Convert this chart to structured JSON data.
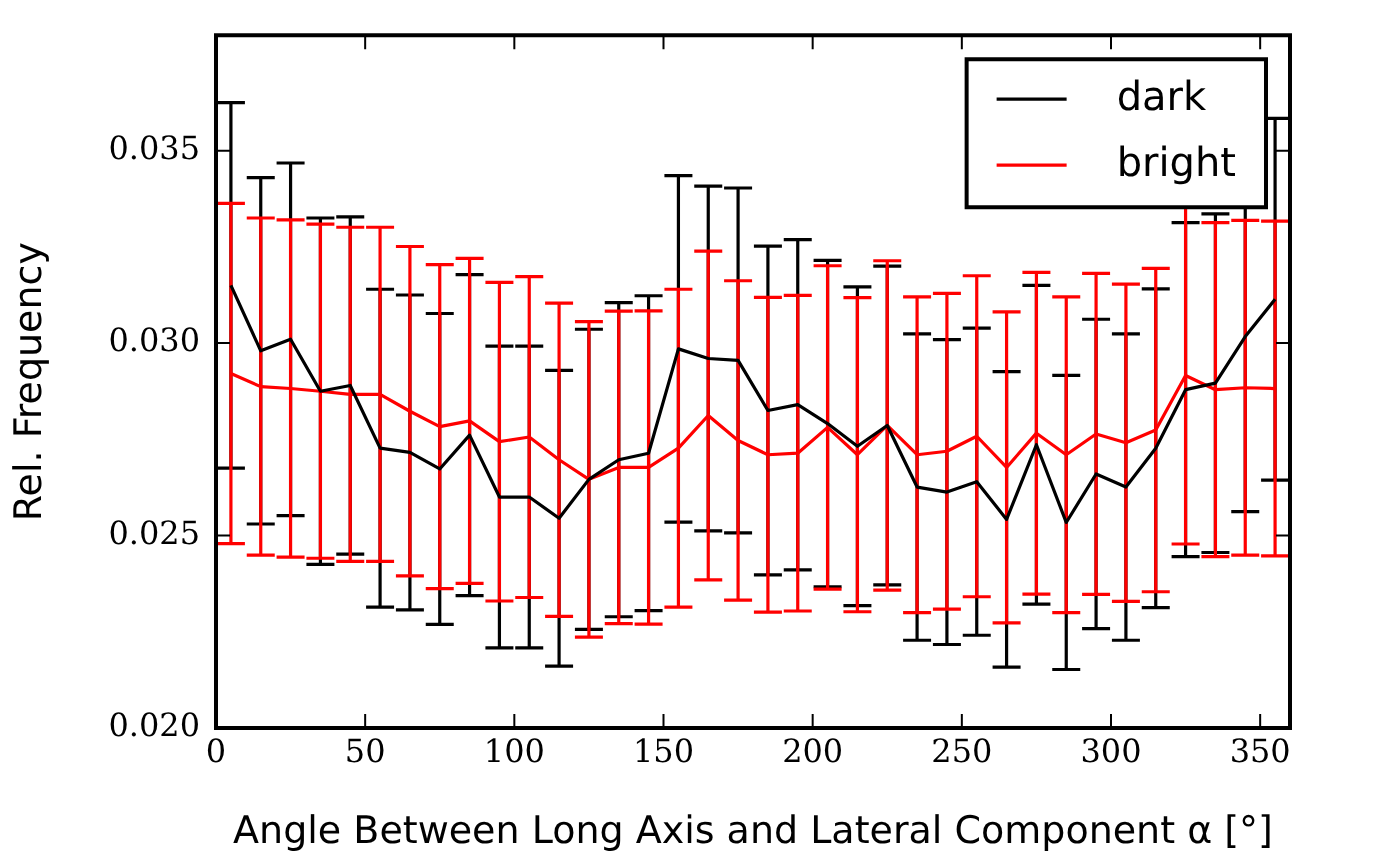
{
  "chart_data": {
    "type": "line",
    "xlabel": "Angle Between Long Axis and Lateral Component α [°]",
    "ylabel": "Rel. Frequency",
    "x": [
      5,
      15,
      25,
      35,
      45,
      55,
      65,
      75,
      85,
      95,
      105,
      115,
      125,
      135,
      145,
      155,
      165,
      175,
      185,
      195,
      205,
      215,
      225,
      235,
      245,
      255,
      265,
      275,
      285,
      295,
      305,
      315,
      325,
      335,
      345,
      355
    ],
    "series": [
      {
        "name": "dark",
        "color": "#000000",
        "values": [
          0.0315,
          0.0298,
          0.0301,
          0.02875,
          0.0289,
          0.02727,
          0.02716,
          0.02673,
          0.02761,
          0.026,
          0.026,
          0.02545,
          0.02646,
          0.02697,
          0.02714,
          0.02985,
          0.0296,
          0.02955,
          0.02825,
          0.0284,
          0.02791,
          0.02732,
          0.02786,
          0.02626,
          0.02613,
          0.0264,
          0.02542,
          0.02736,
          0.02534,
          0.0266,
          0.02626,
          0.02727,
          0.02879,
          0.02896,
          0.03017,
          0.03114
        ],
        "errors": [
          0.00475,
          0.0045,
          0.00458,
          0.0045,
          0.00438,
          0.00413,
          0.00409,
          0.00404,
          0.00417,
          0.00392,
          0.00392,
          0.00384,
          0.0039,
          0.00408,
          0.00409,
          0.0045,
          0.00448,
          0.00448,
          0.00427,
          0.00429,
          0.00424,
          0.00414,
          0.00414,
          0.00398,
          0.00396,
          0.00399,
          0.00384,
          0.00414,
          0.00382,
          0.00402,
          0.00398,
          0.00414,
          0.00434,
          0.0044,
          0.00455,
          0.0047
        ]
      },
      {
        "name": "bright",
        "color": "#ff0000",
        "values": [
          0.02921,
          0.02887,
          0.02882,
          0.02875,
          0.02867,
          0.02867,
          0.02823,
          0.02783,
          0.02798,
          0.02744,
          0.02756,
          0.02697,
          0.02646,
          0.02677,
          0.02677,
          0.02727,
          0.02812,
          0.02747,
          0.0271,
          0.02714,
          0.02781,
          0.0271,
          0.02786,
          0.0271,
          0.02719,
          0.02758,
          0.02677,
          0.02766,
          0.0271,
          0.02764,
          0.02741,
          0.02774,
          0.02916,
          0.02879,
          0.02884,
          0.02882
        ],
        "errors": [
          0.00442,
          0.00438,
          0.00438,
          0.00434,
          0.00434,
          0.00434,
          0.00428,
          0.00421,
          0.00422,
          0.00414,
          0.00417,
          0.00407,
          0.0041,
          0.00406,
          0.00407,
          0.00413,
          0.00427,
          0.00415,
          0.00409,
          0.0041,
          0.0042,
          0.00408,
          0.00428,
          0.0041,
          0.0041,
          0.00417,
          0.00404,
          0.00418,
          0.0041,
          0.00417,
          0.00412,
          0.0042,
          0.00438,
          0.00434,
          0.00435,
          0.00435
        ]
      }
    ],
    "xlim": [
      0,
      360
    ],
    "xticks": [
      0,
      50,
      100,
      150,
      200,
      250,
      300,
      350
    ],
    "ylim": [
      0.02,
      0.038
    ],
    "yticks": [
      {
        "value": 0.02,
        "label": "0.020"
      },
      {
        "value": 0.025,
        "label": "0.025"
      },
      {
        "value": 0.03,
        "label": "0.030"
      },
      {
        "value": 0.035,
        "label": "0.035"
      }
    ],
    "grid": false,
    "legend": "top right",
    "marker": "none",
    "line_style": "solid"
  }
}
